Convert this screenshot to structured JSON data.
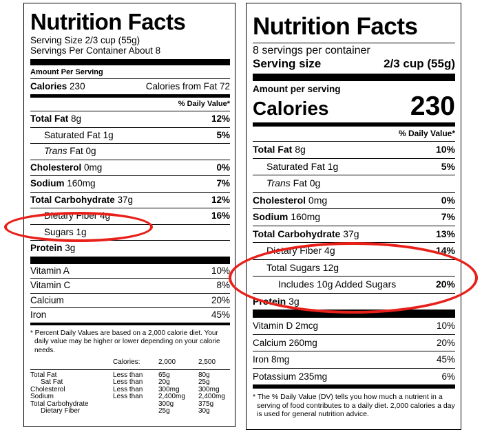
{
  "left": {
    "title": "Nutrition Facts",
    "serving_size": "Serving Size 2/3 cup (55g)",
    "servings_per_container": "Servings Per Container About 8",
    "amount_per_serving": "Amount Per Serving",
    "calories_label": "Calories",
    "calories_value": "230",
    "calories_from_fat": "Calories from Fat 72",
    "daily_value_header": "% Daily Value*",
    "nutrients": [
      {
        "name": "Total Fat",
        "amount": "8g",
        "dv": "12%"
      },
      {
        "name": "Saturated Fat",
        "amount": "1g",
        "dv": "5%"
      },
      {
        "name": "Trans",
        "amount": "Fat 0g",
        "dv": ""
      },
      {
        "name": "Cholesterol",
        "amount": "0mg",
        "dv": "0%"
      },
      {
        "name": "Sodium",
        "amount": "160mg",
        "dv": "7%"
      },
      {
        "name": "Total Carbohydrate",
        "amount": "37g",
        "dv": "12%"
      },
      {
        "name": "Dietary Fiber",
        "amount": "4g",
        "dv": "16%"
      },
      {
        "name": "Sugars",
        "amount": "1g",
        "dv": ""
      },
      {
        "name": "Protein",
        "amount": "3g",
        "dv": ""
      }
    ],
    "vitamins": [
      {
        "name": "Vitamin A",
        "dv": "10%"
      },
      {
        "name": "Vitamin C",
        "dv": "8%"
      },
      {
        "name": "Calcium",
        "dv": "20%"
      },
      {
        "name": "Iron",
        "dv": "45%"
      }
    ],
    "footnote": "* Percent Daily Values are based on a 2,000 calorie diet. Your daily value may be higher or lower depending on your calorie needs.",
    "dv_table": {
      "header": [
        "",
        "Calories:",
        "2,000",
        "2,500"
      ],
      "rows": [
        [
          "Total Fat",
          "Less than",
          "65g",
          "80g"
        ],
        [
          "Sat Fat",
          "Less than",
          "20g",
          "25g"
        ],
        [
          "Cholesterol",
          "Less than",
          "300mg",
          "300mg"
        ],
        [
          "Sodium",
          "Less than",
          "2,400mg",
          "2,400mg"
        ],
        [
          "Total Carbohydrate",
          "",
          "300g",
          "375g"
        ],
        [
          "Dietary Fiber",
          "",
          "25g",
          "30g"
        ]
      ]
    }
  },
  "right": {
    "title": "Nutrition Facts",
    "servings_per_container": "8 servings per container",
    "serving_size_label": "Serving size",
    "serving_size_value": "2/3 cup (55g)",
    "amount_per_serving": "Amount per serving",
    "calories_label": "Calories",
    "calories_value": "230",
    "daily_value_header": "% Daily Value*",
    "nutrients": [
      {
        "name": "Total Fat",
        "amount": "8g",
        "dv": "10%"
      },
      {
        "name": "Saturated Fat",
        "amount": "1g",
        "dv": "5%"
      },
      {
        "name": "Trans",
        "amount": "Fat 0g",
        "dv": ""
      },
      {
        "name": "Cholesterol",
        "amount": "0mg",
        "dv": "0%"
      },
      {
        "name": "Sodium",
        "amount": "160mg",
        "dv": "7%"
      },
      {
        "name": "Total Carbohydrate",
        "amount": "37g",
        "dv": "13%"
      },
      {
        "name": "Dietary Fiber",
        "amount": "4g",
        "dv": "14%"
      },
      {
        "name": "Total Sugars",
        "amount": "12g",
        "dv": ""
      },
      {
        "name": "Includes 10g Added Sugars",
        "amount": "",
        "dv": "20%"
      },
      {
        "name": "Protein",
        "amount": "3g",
        "dv": ""
      }
    ],
    "vitamins": [
      {
        "name": "Vitamin D",
        "amount": "2mcg",
        "dv": "10%"
      },
      {
        "name": "Calcium",
        "amount": "260mg",
        "dv": "20%"
      },
      {
        "name": "Iron",
        "amount": "8mg",
        "dv": "45%"
      },
      {
        "name": "Potassium",
        "amount": "235mg",
        "dv": "6%"
      }
    ],
    "footnote": "* The % Daily Value (DV) tells you how much a nutrient in a serving of food contributes to a daily diet. 2,000 calories a day is used for general nutrition advice."
  },
  "annotation_color": "#e8201a"
}
